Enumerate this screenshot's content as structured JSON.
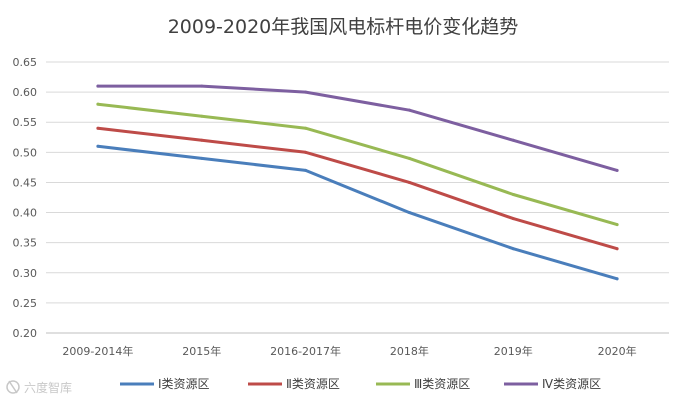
{
  "chart_data": {
    "type": "line",
    "title": "2009-2020年我国风电标杆电价变化趋势",
    "xlabel": "",
    "ylabel": "",
    "categories": [
      "2009-2014年",
      "2015年",
      "2016-2017年",
      "2018年",
      "2019年",
      "2020年"
    ],
    "ylim": [
      0.2,
      0.65
    ],
    "yticks": [
      "0.20",
      "0.25",
      "0.30",
      "0.35",
      "0.40",
      "0.45",
      "0.50",
      "0.55",
      "0.60",
      "0.65"
    ],
    "grid": true,
    "legend_position": "bottom",
    "series": [
      {
        "name": "Ⅰ类资源区",
        "color": "#4a7ebb",
        "values": [
          0.51,
          0.49,
          0.47,
          0.4,
          0.34,
          0.29
        ]
      },
      {
        "name": "Ⅱ类资源区",
        "color": "#be4b48",
        "values": [
          0.54,
          0.52,
          0.5,
          0.45,
          0.39,
          0.34
        ]
      },
      {
        "name": "Ⅲ类资源区",
        "color": "#98b954",
        "values": [
          0.58,
          0.56,
          0.54,
          0.49,
          0.43,
          0.38
        ]
      },
      {
        "name": "Ⅳ类资源区",
        "color": "#7d5fa0",
        "values": [
          0.61,
          0.61,
          0.6,
          0.57,
          0.52,
          0.47
        ]
      }
    ]
  },
  "watermark": {
    "text": "六度智库",
    "icon": "logo-mark-icon",
    "color": "#c8c8c8"
  }
}
